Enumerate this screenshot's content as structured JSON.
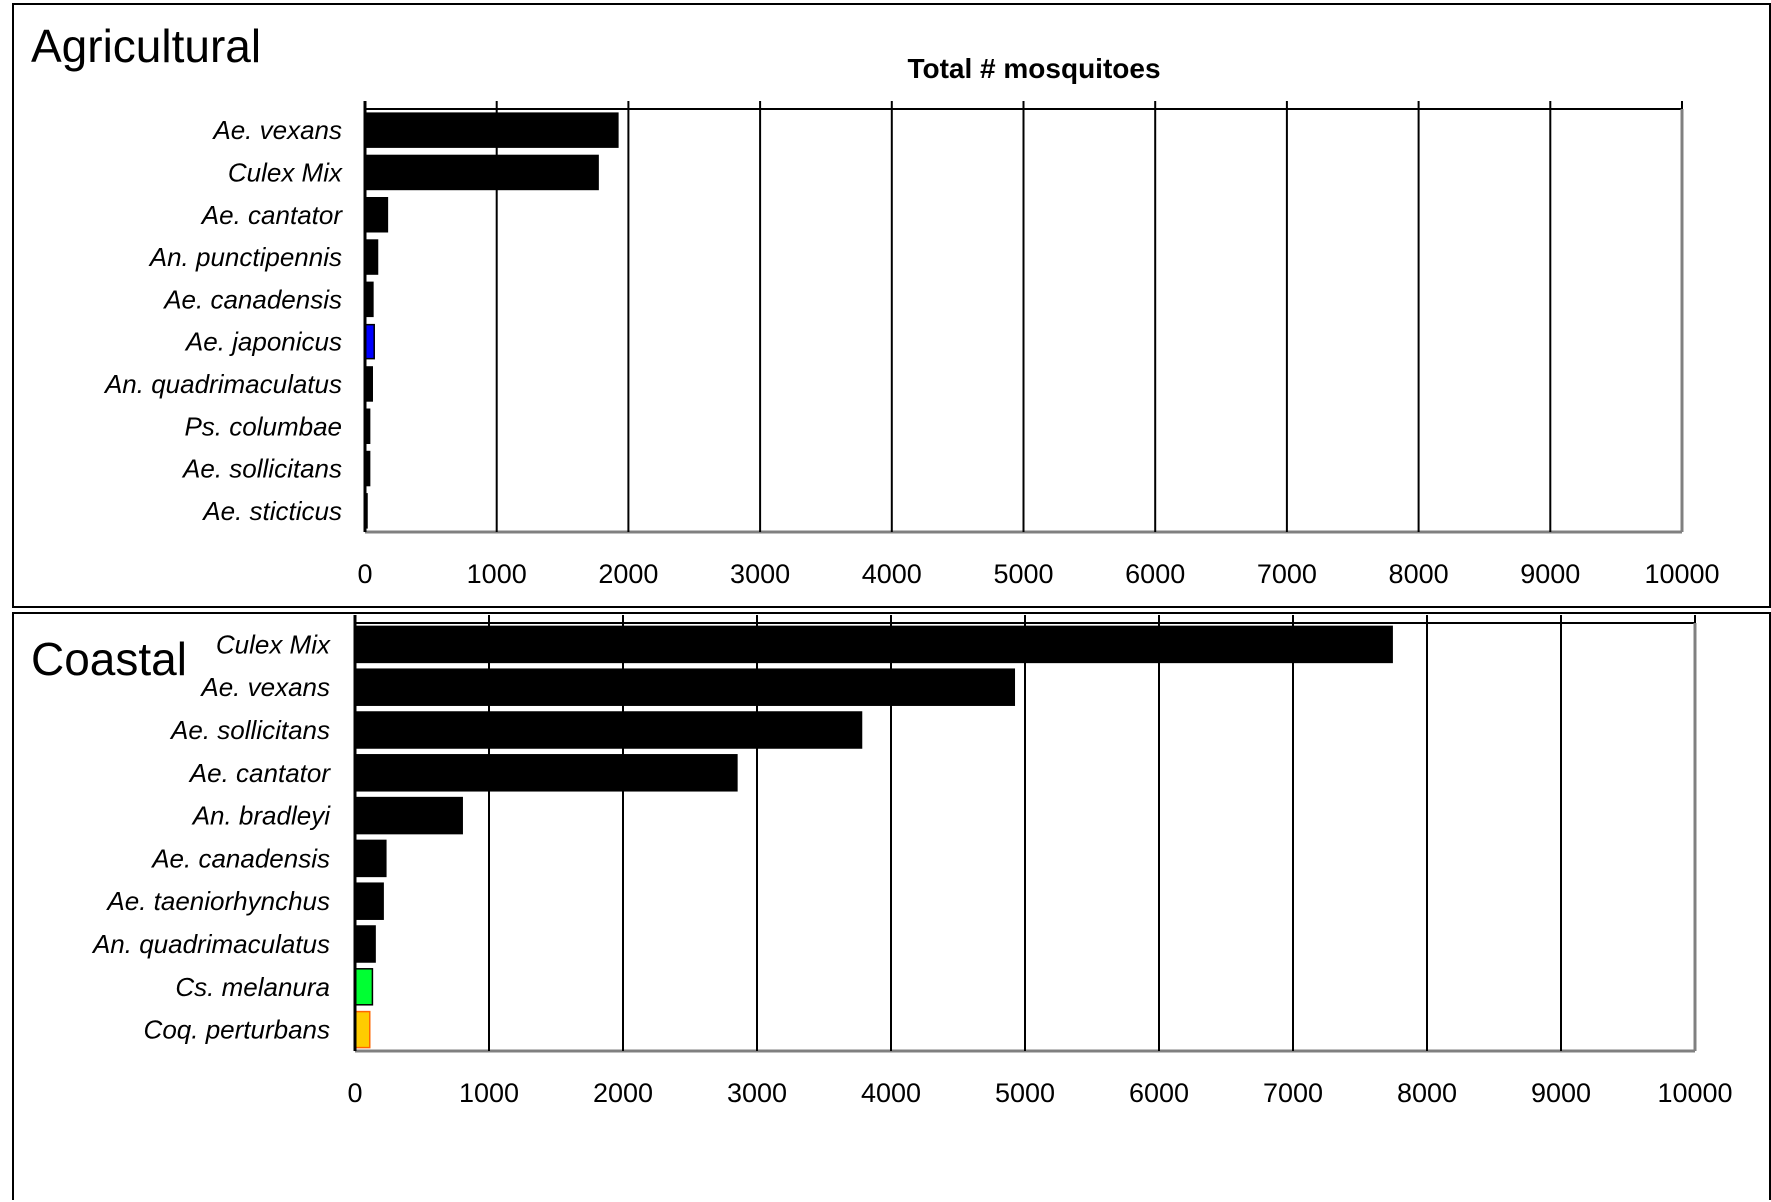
{
  "chart_data": [
    {
      "type": "bar",
      "orientation": "horizontal",
      "panel_title": "Agricultural",
      "title": "Total # mosquitoes",
      "xlim": [
        0,
        10000
      ],
      "xticks": [
        0,
        1000,
        2000,
        3000,
        4000,
        5000,
        6000,
        7000,
        8000,
        9000,
        10000
      ],
      "grid": "vertical",
      "categories": [
        "Ae. vexans",
        "Culex Mix",
        "Ae. cantator",
        "An. punctipennis",
        "Ae. canadensis",
        "Ae. japonicus",
        "An. quadrimaculatus",
        "Ps. columbae",
        "Ae. sollicitans",
        "Ae. sticticus"
      ],
      "values": [
        1920,
        1770,
        170,
        95,
        60,
        70,
        55,
        35,
        35,
        15
      ],
      "colors": [
        "#000000",
        "#000000",
        "#000000",
        "#000000",
        "#000000",
        "#0000ff",
        "#000000",
        "#000000",
        "#000000",
        "#000000"
      ]
    },
    {
      "type": "bar",
      "orientation": "horizontal",
      "panel_title": "Coastal",
      "title": "Total # mosquitoes",
      "xlim": [
        0,
        10000
      ],
      "xticks": [
        0,
        1000,
        2000,
        3000,
        4000,
        5000,
        6000,
        7000,
        8000,
        9000,
        10000
      ],
      "grid": "vertical",
      "categories": [
        "Culex Mix",
        "Ae. vexans",
        "Ae. sollicitans",
        "Ae. cantator",
        "An. bradleyi",
        "Ae. canadensis",
        "Ae. taeniorhynchus",
        "An. quadrimaculatus",
        "Cs. melanura",
        "Coq. perturbans"
      ],
      "values": [
        7740,
        4920,
        3780,
        2850,
        800,
        230,
        210,
        150,
        130,
        110
      ],
      "colors": [
        "#000000",
        "#000000",
        "#000000",
        "#000000",
        "#000000",
        "#000000",
        "#000000",
        "#000000",
        "#00ff33",
        "#ffcc00"
      ]
    }
  ]
}
